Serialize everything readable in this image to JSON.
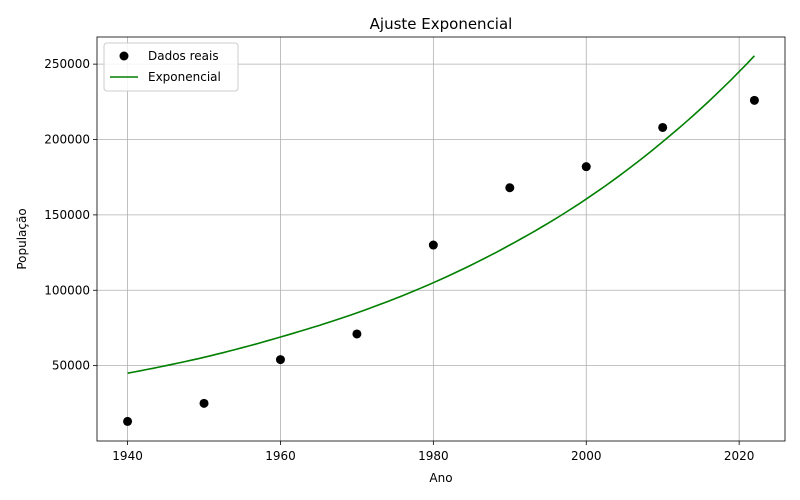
{
  "chart_data": {
    "type": "scatter",
    "title": "Ajuste Exponencial",
    "xlabel": "Ano",
    "ylabel": "População",
    "xlim": [
      1936,
      2026
    ],
    "ylim": [
      0,
      268000
    ],
    "xticks": [
      1940,
      1960,
      1980,
      2000,
      2020
    ],
    "yticks": [
      50000,
      100000,
      150000,
      200000,
      250000
    ],
    "grid": true,
    "legend_position": "top-left",
    "series": [
      {
        "name": "Dados reais",
        "kind": "scatter",
        "color": "#000000",
        "x": [
          1940,
          1950,
          1960,
          1970,
          1980,
          1990,
          2000,
          2010,
          2022
        ],
        "y": [
          13000,
          25000,
          54000,
          71000,
          130000,
          168000,
          182000,
          208000,
          226000
        ]
      },
      {
        "name": "Exponencial",
        "kind": "line",
        "color": "#008000",
        "x": [
          1940,
          1950,
          1960,
          1970,
          1980,
          1990,
          2000,
          2010,
          2022
        ],
        "y": [
          45000,
          55500,
          69000,
          85000,
          105000,
          130000,
          160500,
          198500,
          255500
        ]
      }
    ]
  }
}
